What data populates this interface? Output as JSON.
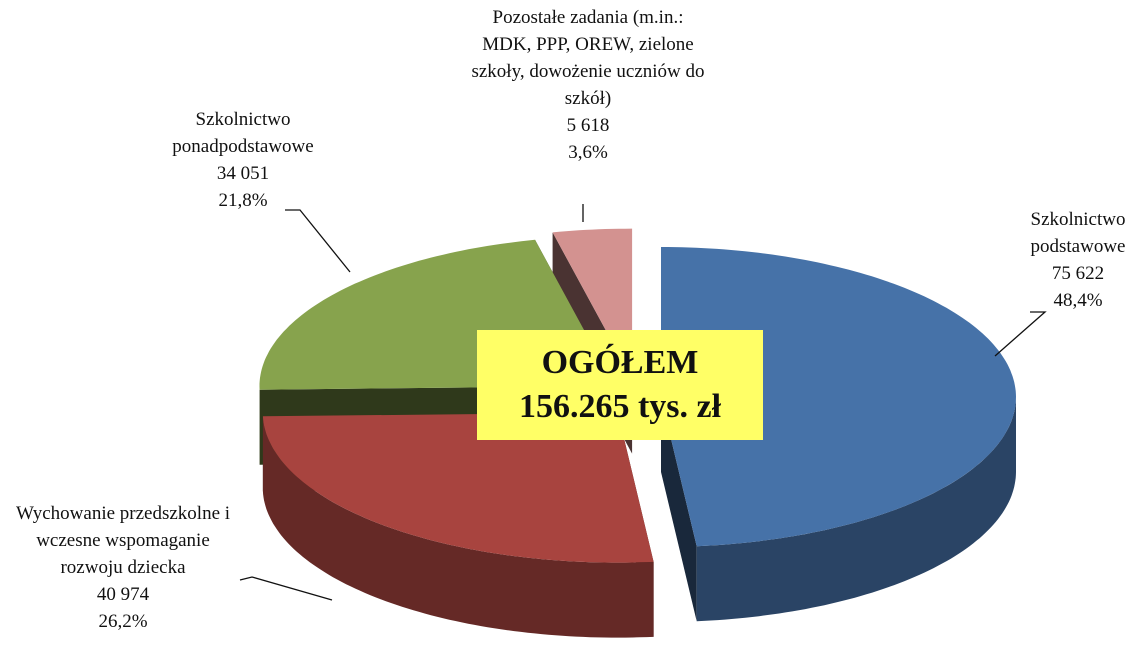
{
  "chart_data": {
    "type": "pie",
    "categories": [
      "Szkolnictwo podstawowe",
      "Wychowanie przedszkolne i wczesne wspomaganie rozwoju dziecka",
      "Szkolnictwo ponadpodstawowe",
      "Pozostałe zadania (m.in.: MDK, PPP, OREW, zielone szkoły, dowożenie uczniów do szkół)"
    ],
    "values": [
      75622,
      40974,
      34051,
      5618
    ],
    "value_labels": [
      "75 622",
      "40 974",
      "34 051",
      "5 618"
    ],
    "percentages": [
      48.4,
      26.2,
      21.8,
      3.6
    ],
    "percentage_labels": [
      "48,4%",
      "26,2%",
      "21,8%",
      "3,6%"
    ],
    "colors": [
      "#4672a8",
      "#a8443f",
      "#87a34d",
      "#d39290"
    ],
    "center_label": {
      "title": "OGÓŁEM",
      "total": "156.265 tys. zł"
    }
  }
}
